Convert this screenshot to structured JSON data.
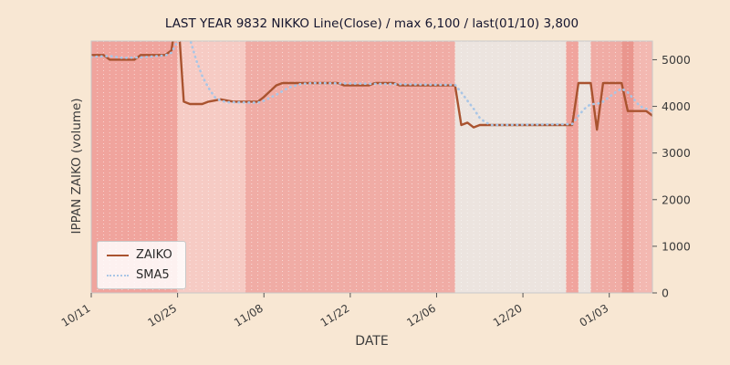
{
  "chart_data": {
    "type": "line",
    "title": "LAST YEAR 9832 NIKKO Line(Close) / max 6,100 / last(01/10) 3,800",
    "xlabel": "DATE",
    "ylabel": "IPPAN ZAIKO (volume)",
    "x_range_days": [
      0,
      91
    ],
    "ylim": [
      0,
      5400
    ],
    "grid": "vertical-daily-white-dotted",
    "legend_position": "lower-left",
    "yticks": [
      0,
      1000,
      2000,
      3000,
      4000,
      5000
    ],
    "xticks": [
      {
        "day": 0,
        "label": "10/11"
      },
      {
        "day": 14,
        "label": "10/25"
      },
      {
        "day": 28,
        "label": "11/08"
      },
      {
        "day": 42,
        "label": "11/22"
      },
      {
        "day": 56,
        "label": "12/06"
      },
      {
        "day": 70,
        "label": "12/20"
      },
      {
        "day": 84,
        "label": "01/03"
      }
    ],
    "legend": [
      {
        "label": "ZAIKO",
        "color": "#a9532f",
        "style": "solid"
      },
      {
        "label": "SMA5",
        "color": "#a9c6e6",
        "style": "dotted"
      }
    ],
    "annotations": {
      "max_value": 6100,
      "max_date": "10/25",
      "last_value": 3800,
      "last_date": "01/10"
    },
    "series": [
      {
        "name": "ZAIKO",
        "color": "#a9532f",
        "style": "solid",
        "points": [
          [
            0,
            5100
          ],
          [
            2,
            5100
          ],
          [
            3,
            5000
          ],
          [
            7,
            5000
          ],
          [
            8,
            5100
          ],
          [
            12,
            5100
          ],
          [
            13,
            5200
          ],
          [
            14,
            6100
          ],
          [
            15,
            4100
          ],
          [
            16,
            4050
          ],
          [
            18,
            4050
          ],
          [
            19,
            4100
          ],
          [
            21,
            4150
          ],
          [
            23,
            4100
          ],
          [
            27,
            4100
          ],
          [
            28,
            4200
          ],
          [
            30,
            4450
          ],
          [
            31,
            4500
          ],
          [
            40,
            4500
          ],
          [
            41,
            4450
          ],
          [
            45,
            4450
          ],
          [
            46,
            4500
          ],
          [
            49,
            4500
          ],
          [
            50,
            4450
          ],
          [
            59,
            4450
          ],
          [
            60,
            3600
          ],
          [
            61,
            3650
          ],
          [
            62,
            3550
          ],
          [
            63,
            3600
          ],
          [
            78,
            3600
          ],
          [
            79,
            4500
          ],
          [
            81,
            4500
          ],
          [
            82,
            3500
          ],
          [
            83,
            4500
          ],
          [
            86,
            4500
          ],
          [
            87,
            3900
          ],
          [
            90,
            3900
          ],
          [
            91,
            3800
          ]
        ]
      },
      {
        "name": "SMA5",
        "color": "#a9c6e6",
        "style": "dotted",
        "points": [
          [
            0,
            5060
          ],
          [
            3,
            5080
          ],
          [
            5,
            5040
          ],
          [
            8,
            5050
          ],
          [
            12,
            5090
          ],
          [
            13,
            5150
          ],
          [
            14,
            5400
          ],
          [
            16,
            5450
          ],
          [
            17,
            5000
          ],
          [
            18,
            4650
          ],
          [
            19,
            4400
          ],
          [
            20,
            4200
          ],
          [
            21,
            4120
          ],
          [
            22,
            4090
          ],
          [
            27,
            4080
          ],
          [
            28,
            4120
          ],
          [
            30,
            4250
          ],
          [
            32,
            4400
          ],
          [
            34,
            4480
          ],
          [
            36,
            4500
          ],
          [
            59,
            4460
          ],
          [
            60,
            4300
          ],
          [
            61,
            4120
          ],
          [
            62,
            3950
          ],
          [
            63,
            3750
          ],
          [
            64,
            3650
          ],
          [
            65,
            3600
          ],
          [
            78,
            3620
          ],
          [
            79,
            3800
          ],
          [
            80,
            3950
          ],
          [
            81,
            4050
          ],
          [
            82,
            4050
          ],
          [
            83,
            4100
          ],
          [
            84,
            4200
          ],
          [
            85,
            4300
          ],
          [
            86,
            4380
          ],
          [
            87,
            4300
          ],
          [
            88,
            4150
          ],
          [
            89,
            4000
          ],
          [
            90,
            3950
          ],
          [
            91,
            3900
          ]
        ]
      }
    ],
    "background_bands": [
      {
        "from": 0,
        "to": 14,
        "color": "#f0a49d"
      },
      {
        "from": 14,
        "to": 25,
        "color": "#f6cbc4"
      },
      {
        "from": 25,
        "to": 59,
        "color": "#f0aca5"
      },
      {
        "from": 59,
        "to": 77,
        "color": "#ece4df"
      },
      {
        "from": 77,
        "to": 79,
        "color": "#f0a49d"
      },
      {
        "from": 79,
        "to": 81,
        "color": "#ece4df"
      },
      {
        "from": 81,
        "to": 86,
        "color": "#f0aca5"
      },
      {
        "from": 86,
        "to": 88,
        "color": "#ea968e"
      },
      {
        "from": 88,
        "to": 91,
        "color": "#f3b8b1"
      }
    ],
    "colors": {
      "figure_background": "#f8e7d3",
      "title_text": "#15152e",
      "axis_text": "#3c3c3c",
      "tick_text": "#3a3a3a",
      "plot_border": "#c8c8c8",
      "day_gridline": "rgba(255,255,255,0.55)"
    }
  }
}
